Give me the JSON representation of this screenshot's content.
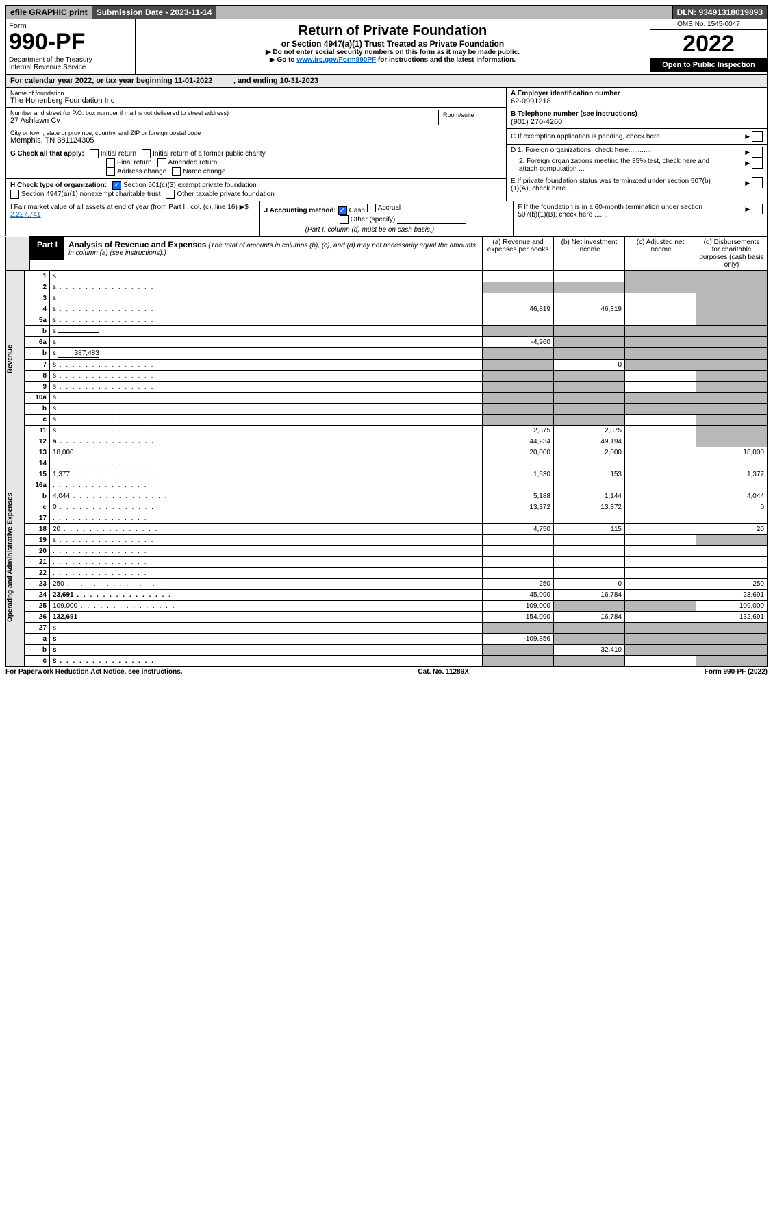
{
  "topbar": {
    "efile": "efile GRAPHIC print",
    "submission": "Submission Date - 2023-11-14",
    "dln": "DLN: 93491318019893"
  },
  "header": {
    "form_word": "Form",
    "form_no": "990-PF",
    "dept": "Department of the Treasury\nInternal Revenue Service",
    "title": "Return of Private Foundation",
    "subtitle": "or Section 4947(a)(1) Trust Treated as Private Foundation",
    "instr1": "▶ Do not enter social security numbers on this form as it may be made public.",
    "instr2_a": "▶ Go to ",
    "instr2_link": "www.irs.gov/Form990PF",
    "instr2_b": " for instructions and the latest information.",
    "omb": "OMB No. 1545-0047",
    "year": "2022",
    "open": "Open to Public Inspection"
  },
  "calyear": "For calendar year 2022, or tax year beginning 11-01-2022          , and ending 10-31-2023",
  "info": {
    "name_label": "Name of foundation",
    "name": "The Hohenberg Foundation Inc",
    "addr_label": "Number and street (or P.O. box number if mail is not delivered to street address)",
    "addr": "27 Ashlawn Cv",
    "room_label": "Room/suite",
    "city_label": "City or town, state or province, country, and ZIP or foreign postal code",
    "city": "Memphis, TN  381124305",
    "ein_label": "A Employer identification number",
    "ein": "62-0991218",
    "phone_label": "B Telephone number (see instructions)",
    "phone": "(901) 270-4260",
    "c_label": "C If exemption application is pending, check here",
    "d1": "D 1. Foreign organizations, check here.............",
    "d2": "2. Foreign organizations meeting the 85% test, check here and attach computation ...",
    "e_label": "E If private foundation status was terminated under section 507(b)(1)(A), check here .......",
    "f_label": "F If the foundation is in a 60-month termination under section 507(b)(1)(B), check here ......."
  },
  "g": {
    "label": "G Check all that apply:",
    "opts": [
      "Initial return",
      "Initial return of a former public charity",
      "Final return",
      "Amended return",
      "Address change",
      "Name change"
    ]
  },
  "h": {
    "label": "H Check type of organization:",
    "opt1": "Section 501(c)(3) exempt private foundation",
    "opt2": "Section 4947(a)(1) nonexempt charitable trust",
    "opt3": "Other taxable private foundation"
  },
  "i": {
    "label": "I Fair market value of all assets at end of year (from Part II, col. (c), line 16) ▶$",
    "amount": "2,227,741"
  },
  "j": {
    "label": "J Accounting method:",
    "cash": "Cash",
    "accrual": "Accrual",
    "other": "Other (specify)",
    "note": "(Part I, column (d) must be on cash basis.)"
  },
  "part1": {
    "badge": "Part I",
    "title": "Analysis of Revenue and Expenses",
    "title_note": "(The total of amounts in columns (b), (c), and (d) may not necessarily equal the amounts in column (a) (see instructions).)",
    "col_a": "(a) Revenue and expenses per books",
    "col_b": "(b) Net investment income",
    "col_c": "(c) Adjusted net income",
    "col_d": "(d) Disbursements for charitable purposes (cash basis only)"
  },
  "side": {
    "revenue": "Revenue",
    "expenses": "Operating and Administrative Expenses"
  },
  "rows": [
    {
      "n": "1",
      "d": "s",
      "a": "",
      "b": "",
      "c": "s"
    },
    {
      "n": "2",
      "d": "s",
      "a": "s",
      "b": "s",
      "c": "s",
      "dots": true,
      "bold_not": true
    },
    {
      "n": "3",
      "d": "s",
      "a": "",
      "b": "",
      "c": ""
    },
    {
      "n": "4",
      "d": "s",
      "a": "46,819",
      "b": "46,819",
      "c": "",
      "dots": true
    },
    {
      "n": "5a",
      "d": "s",
      "a": "",
      "b": "",
      "c": "",
      "dots": true
    },
    {
      "n": "b",
      "d": "s",
      "a": "s",
      "b": "s",
      "c": "s",
      "uf": ""
    },
    {
      "n": "6a",
      "d": "s",
      "a": "-4,960",
      "b": "s",
      "c": "s"
    },
    {
      "n": "b",
      "d": "s",
      "a": "s",
      "b": "s",
      "c": "s",
      "uf": "387,483"
    },
    {
      "n": "7",
      "d": "s",
      "a": "s",
      "b": "0",
      "c": "s",
      "dots": true
    },
    {
      "n": "8",
      "d": "s",
      "a": "s",
      "b": "s",
      "c": "",
      "dots": true
    },
    {
      "n": "9",
      "d": "s",
      "a": "s",
      "b": "s",
      "c": "",
      "dots": true
    },
    {
      "n": "10a",
      "d": "s",
      "a": "s",
      "b": "s",
      "c": "s",
      "uf": ""
    },
    {
      "n": "b",
      "d": "s",
      "a": "s",
      "b": "s",
      "c": "s",
      "uf": "",
      "dots": true
    },
    {
      "n": "c",
      "d": "s",
      "a": "s",
      "b": "s",
      "c": "",
      "dots": true
    },
    {
      "n": "11",
      "d": "s",
      "a": "2,375",
      "b": "2,375",
      "c": "",
      "dots": true
    },
    {
      "n": "12",
      "d": "s",
      "a": "44,234",
      "b": "49,194",
      "c": "",
      "bold": true,
      "dots": true
    }
  ],
  "exp_rows": [
    {
      "n": "13",
      "d": "18,000",
      "a": "20,000",
      "b": "2,000",
      "c": ""
    },
    {
      "n": "14",
      "d": "",
      "a": "",
      "b": "",
      "c": "",
      "dots": true
    },
    {
      "n": "15",
      "d": "1,377",
      "a": "1,530",
      "b": "153",
      "c": "",
      "dots": true
    },
    {
      "n": "16a",
      "d": "",
      "a": "",
      "b": "",
      "c": "",
      "dots": true
    },
    {
      "n": "b",
      "d": "4,044",
      "a": "5,188",
      "b": "1,144",
      "c": "",
      "dots": true
    },
    {
      "n": "c",
      "d": "0",
      "a": "13,372",
      "b": "13,372",
      "c": "",
      "dots": true
    },
    {
      "n": "17",
      "d": "",
      "a": "",
      "b": "",
      "c": "",
      "dots": true
    },
    {
      "n": "18",
      "d": "20",
      "a": "4,750",
      "b": "115",
      "c": "",
      "dots": true
    },
    {
      "n": "19",
      "d": "s",
      "a": "",
      "b": "",
      "c": "",
      "dots": true
    },
    {
      "n": "20",
      "d": "",
      "a": "",
      "b": "",
      "c": "",
      "dots": true
    },
    {
      "n": "21",
      "d": "",
      "a": "",
      "b": "",
      "c": "",
      "dots": true
    },
    {
      "n": "22",
      "d": "",
      "a": "",
      "b": "",
      "c": "",
      "dots": true
    },
    {
      "n": "23",
      "d": "250",
      "a": "250",
      "b": "0",
      "c": "",
      "dots": true
    },
    {
      "n": "24",
      "d": "23,691",
      "a": "45,090",
      "b": "16,784",
      "c": "",
      "bold": true,
      "dots": true
    },
    {
      "n": "25",
      "d": "109,000",
      "a": "109,000",
      "b": "s",
      "c": "s",
      "dots": true
    },
    {
      "n": "26",
      "d": "132,691",
      "a": "154,090",
      "b": "16,784",
      "c": "",
      "bold": true
    },
    {
      "n": "27",
      "d": "s",
      "a": "s",
      "b": "s",
      "c": "s"
    },
    {
      "n": "a",
      "d": "s",
      "a": "-109,856",
      "b": "s",
      "c": "s",
      "bold": true
    },
    {
      "n": "b",
      "d": "s",
      "a": "s",
      "b": "32,410",
      "c": "s",
      "bold": true
    },
    {
      "n": "c",
      "d": "s",
      "a": "s",
      "b": "s",
      "c": "",
      "bold": true,
      "dots": true
    }
  ],
  "footer": {
    "left": "For Paperwork Reduction Act Notice, see instructions.",
    "center": "Cat. No. 11289X",
    "right": "Form 990-PF (2022)"
  }
}
